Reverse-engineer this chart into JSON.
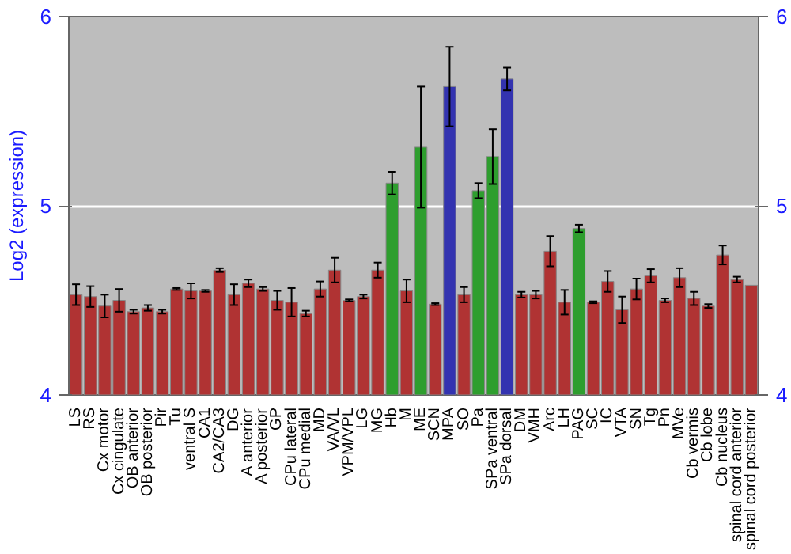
{
  "chart_data": {
    "type": "bar",
    "ylabel": "Log2 (expression)",
    "categories": [
      "LS",
      "RS",
      "Cx motor",
      "Cx cingulate",
      "OB anterior",
      "OB posterior",
      "Pir",
      "Tu",
      "ventral S",
      "CA1",
      "CA2/CA3",
      "DG",
      "A anterior",
      "A posterior",
      "GP",
      "CPu lateral",
      "CPu medial",
      "MD",
      "VA/VL",
      "VPM/VPL",
      "LG",
      "MG",
      "Hb",
      "M",
      "ME",
      "SCN",
      "MPA",
      "SO",
      "Pa",
      "SPa ventral",
      "SPa dorsal",
      "DM",
      "VMH",
      "Arc",
      "LH",
      "PAG",
      "SC",
      "IC",
      "VTA",
      "SN",
      "Tg",
      "Pn",
      "MVe",
      "Cb vermis",
      "Cb lobe",
      "Cb nucleus",
      "spinal cord anterior",
      "spinal cord posterior"
    ],
    "values": [
      4.53,
      4.52,
      4.47,
      4.5,
      4.44,
      4.46,
      4.44,
      4.56,
      4.55,
      4.55,
      4.66,
      4.53,
      4.59,
      4.56,
      4.5,
      4.49,
      4.43,
      4.56,
      4.66,
      4.5,
      4.52,
      4.66,
      5.12,
      4.55,
      5.31,
      4.48,
      5.63,
      4.53,
      5.08,
      5.26,
      5.67,
      4.53,
      4.53,
      4.76,
      4.49,
      4.88,
      4.49,
      4.6,
      4.45,
      4.56,
      4.63,
      4.5,
      4.62,
      4.51,
      4.47,
      4.74,
      4.61,
      4.58
    ],
    "errors": [
      0.055,
      0.055,
      0.06,
      0.06,
      0.01,
      0.015,
      0.01,
      0.005,
      0.04,
      0.005,
      0.01,
      0.055,
      0.02,
      0.01,
      0.05,
      0.075,
      0.015,
      0.04,
      0.065,
      0.005,
      0.01,
      0.04,
      0.06,
      0.06,
      0.32,
      0.005,
      0.21,
      0.04,
      0.04,
      0.145,
      0.06,
      0.015,
      0.02,
      0.08,
      0.065,
      0.02,
      0.005,
      0.055,
      0.07,
      0.055,
      0.035,
      0.01,
      0.05,
      0.035,
      0.01,
      0.05,
      0.015,
      null
    ],
    "colors": [
      "#b03333",
      "#b03333",
      "#b03333",
      "#b03333",
      "#b03333",
      "#b03333",
      "#b03333",
      "#b03333",
      "#b03333",
      "#b03333",
      "#b03333",
      "#b03333",
      "#b03333",
      "#b03333",
      "#b03333",
      "#b03333",
      "#b03333",
      "#b03333",
      "#b03333",
      "#b03333",
      "#b03333",
      "#b03333",
      "#2e9e2e",
      "#b03333",
      "#2e9e2e",
      "#b03333",
      "#3333b0",
      "#b03333",
      "#2e9e2e",
      "#2e9e2e",
      "#3333b0",
      "#b03333",
      "#b03333",
      "#b03333",
      "#b03333",
      "#2e9e2e",
      "#b03333",
      "#b03333",
      "#b03333",
      "#b03333",
      "#b03333",
      "#b03333",
      "#b03333",
      "#b03333",
      "#b03333",
      "#b03333",
      "#b03333",
      "#b03333"
    ],
    "ylim": [
      4,
      6
    ],
    "yticks": [
      4,
      5,
      6
    ],
    "y2lim": [
      4,
      6
    ],
    "y2ticks": [
      4,
      5,
      6
    ],
    "grid": "y"
  }
}
